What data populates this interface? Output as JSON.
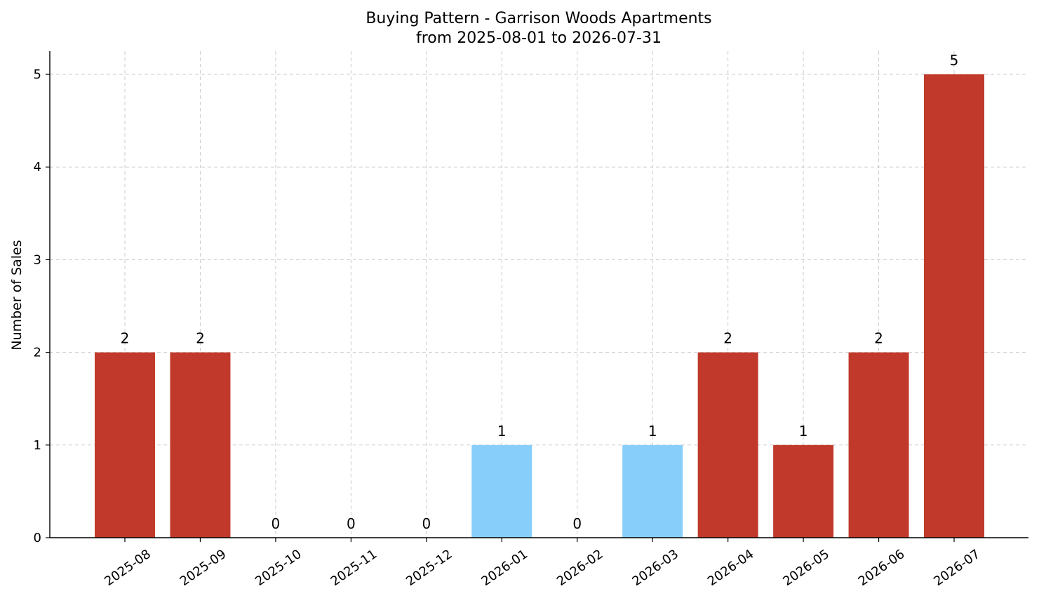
{
  "chart_data": {
    "type": "bar",
    "title": "Buying Pattern - Garrison Woods Apartments",
    "subtitle": "from 2025-08-01 to 2026-07-31",
    "xlabel": "",
    "ylabel": "Number of Sales",
    "categories": [
      "2025-08",
      "2025-09",
      "2025-10",
      "2025-11",
      "2025-12",
      "2026-01",
      "2026-02",
      "2026-03",
      "2026-04",
      "2026-05",
      "2026-06",
      "2026-07"
    ],
    "values": [
      2,
      2,
      0,
      0,
      0,
      1,
      0,
      1,
      2,
      1,
      2,
      5
    ],
    "bar_colors": [
      "#c0392b",
      "#c0392b",
      "#c0392b",
      "#c0392b",
      "#c0392b",
      "#87cefa",
      "#c0392b",
      "#87cefa",
      "#c0392b",
      "#c0392b",
      "#c0392b",
      "#c0392b"
    ],
    "ylim": [
      0,
      5.25
    ],
    "yticks": [
      0,
      1,
      2,
      3,
      4,
      5
    ],
    "grid": true
  }
}
